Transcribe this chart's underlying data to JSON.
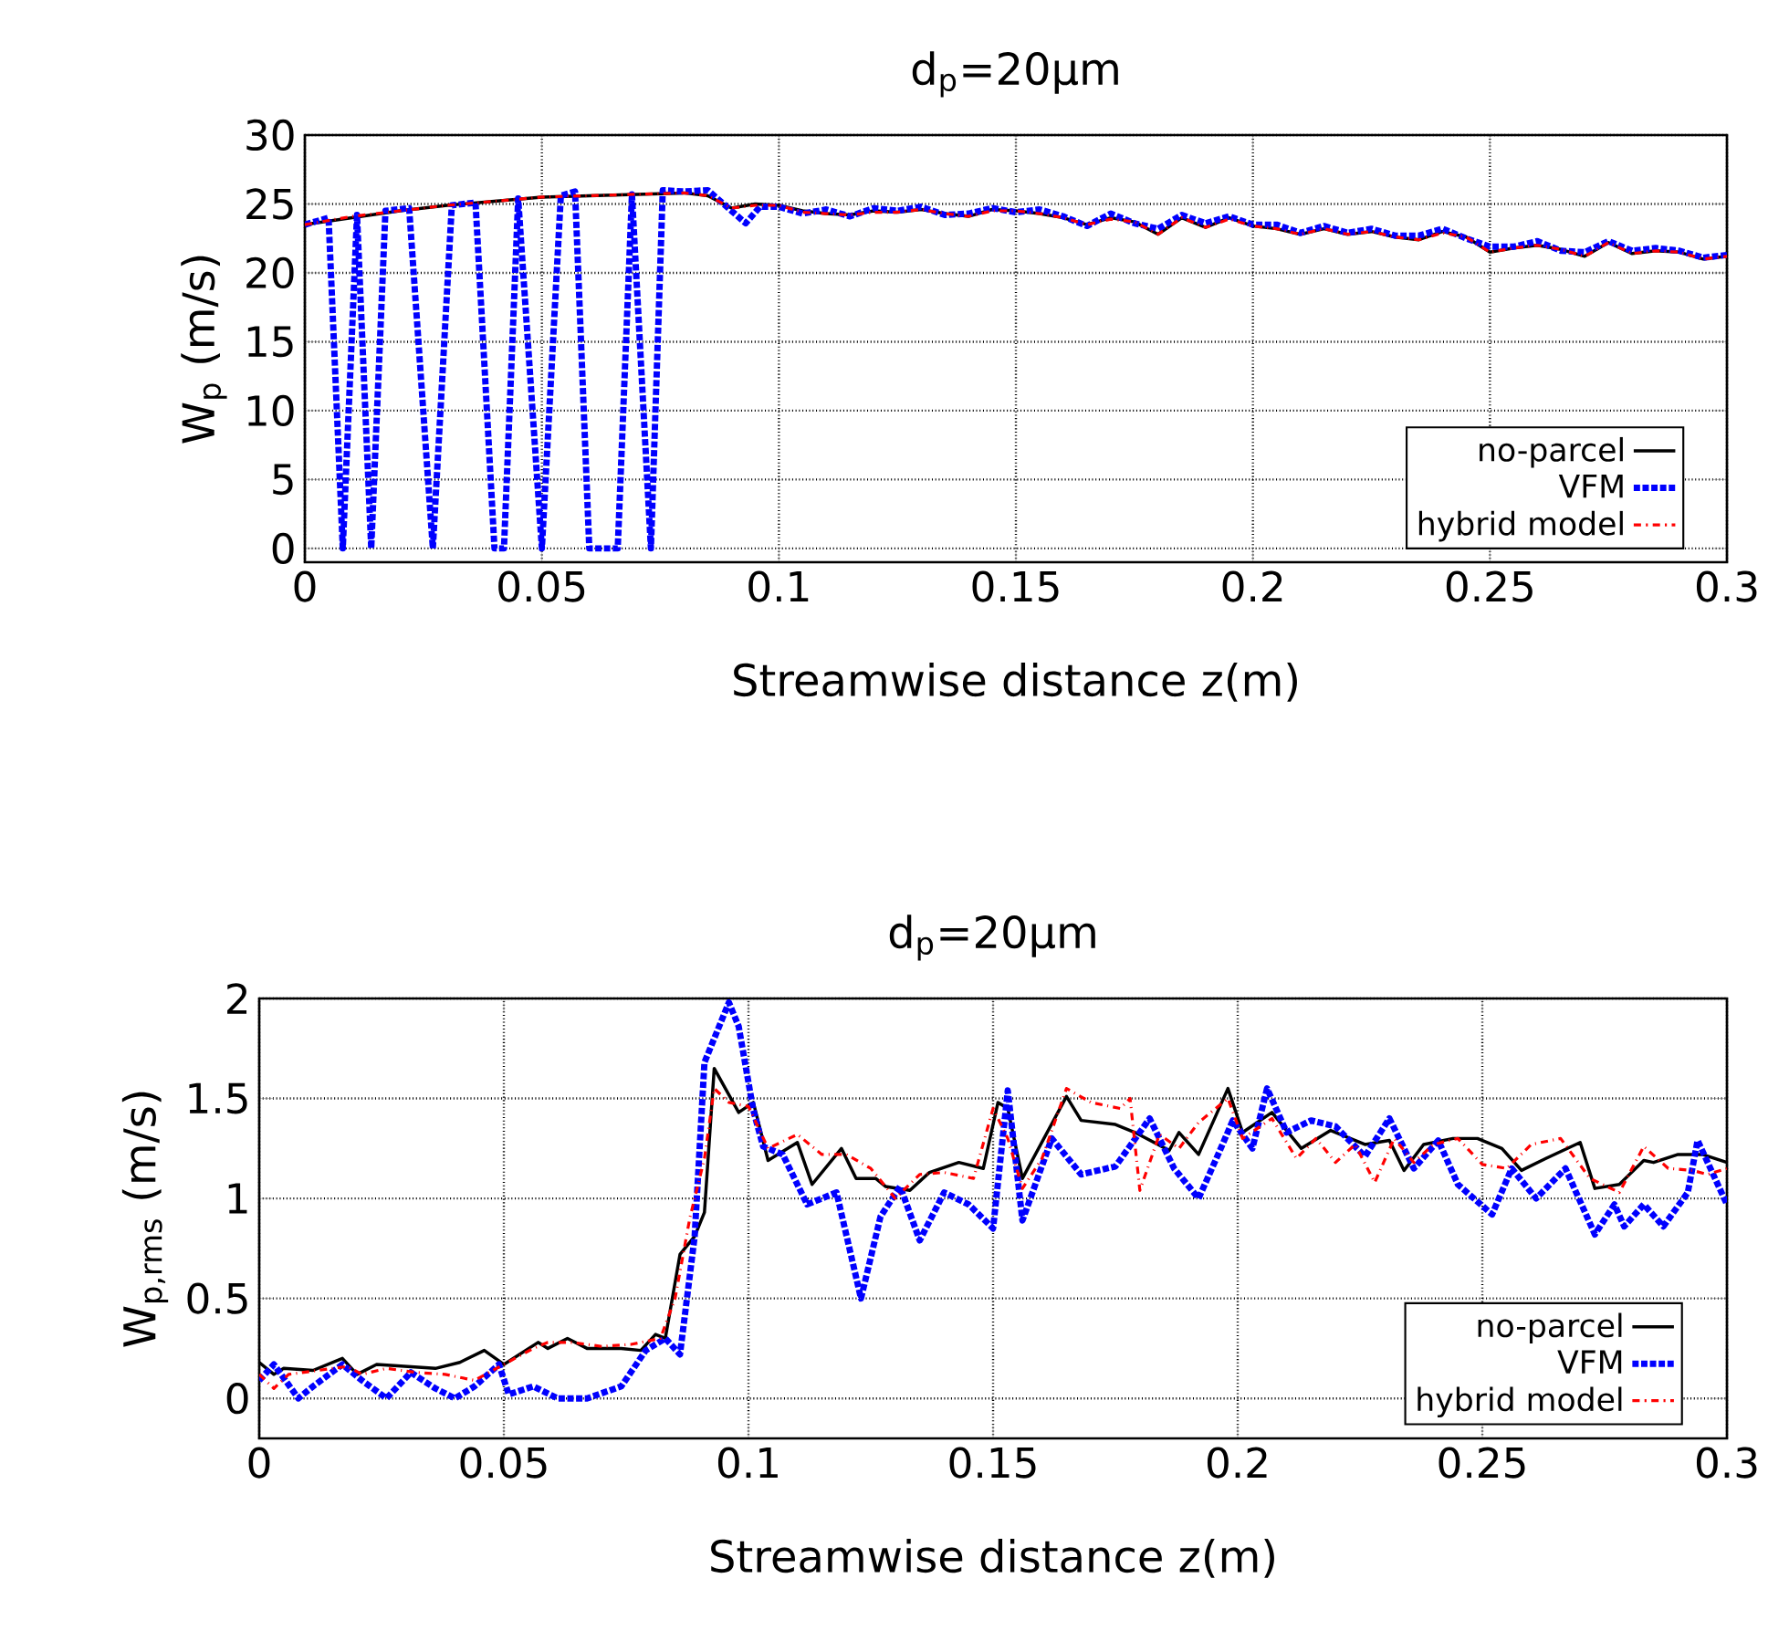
{
  "chart_data": [
    {
      "type": "line",
      "title": "d$_{p}$=20µm",
      "xlabel": "Streamwise distance z(m)",
      "ylabel": "W$_{p}$ (m/s)",
      "xlim": [
        0,
        0.3
      ],
      "ylim": [
        -1,
        30
      ],
      "xticks": [
        0,
        0.05,
        0.1,
        0.15,
        0.2,
        0.25,
        0.3
      ],
      "yticks": [
        0,
        5,
        10,
        15,
        20,
        25,
        30
      ],
      "grid": true,
      "legend": "bottom right",
      "series": [
        {
          "name": "no-parcel",
          "color": "#000000",
          "line_style": "solid",
          "x": [
            0,
            0.01,
            0.02,
            0.03,
            0.04,
            0.05,
            0.06,
            0.07,
            0.08,
            0.085,
            0.09,
            0.095,
            0.1,
            0.105,
            0.11,
            0.115,
            0.12,
            0.125,
            0.13,
            0.135,
            0.14,
            0.145,
            0.15,
            0.155,
            0.16,
            0.165,
            0.17,
            0.175,
            0.18,
            0.185,
            0.19,
            0.195,
            0.2,
            0.205,
            0.21,
            0.215,
            0.22,
            0.225,
            0.23,
            0.235,
            0.24,
            0.245,
            0.25,
            0.255,
            0.26,
            0.265,
            0.27,
            0.275,
            0.28,
            0.285,
            0.29,
            0.295,
            0.3
          ],
          "values": [
            23.5,
            24,
            24.5,
            24.9,
            25.2,
            25.5,
            25.6,
            25.7,
            25.8,
            25.6,
            24.7,
            25,
            24.9,
            24.5,
            24.3,
            24.2,
            24.5,
            24.4,
            24.6,
            24.3,
            24.1,
            24.6,
            24.5,
            24.3,
            24,
            23.5,
            24,
            23.7,
            22.8,
            24,
            23.3,
            24,
            23.4,
            23.2,
            22.8,
            23.2,
            22.8,
            23,
            22.6,
            22.4,
            23,
            22.6,
            21.5,
            21.8,
            22,
            21.7,
            21.2,
            22.2,
            21.4,
            21.6,
            21.5,
            21,
            21.2
          ]
        },
        {
          "name": "VFM",
          "color": "#0000ff",
          "line_style": "dotted",
          "x": [
            0,
            0.005,
            0.008,
            0.011,
            0.014,
            0.017,
            0.022,
            0.027,
            0.031,
            0.036,
            0.04,
            0.042,
            0.045,
            0.05,
            0.054,
            0.057,
            0.06,
            0.066,
            0.069,
            0.073,
            0.0755,
            0.08,
            0.085,
            0.09,
            0.093,
            0.096,
            0.1,
            0.105,
            0.11,
            0.115,
            0.12,
            0.125,
            0.13,
            0.135,
            0.14,
            0.145,
            0.15,
            0.155,
            0.16,
            0.165,
            0.17,
            0.175,
            0.18,
            0.185,
            0.19,
            0.195,
            0.2,
            0.205,
            0.21,
            0.215,
            0.22,
            0.225,
            0.23,
            0.235,
            0.24,
            0.245,
            0.25,
            0.255,
            0.26,
            0.265,
            0.27,
            0.275,
            0.28,
            0.285,
            0.29,
            0.295,
            0.3
          ],
          "values": [
            23.5,
            24,
            0,
            24.2,
            0,
            24.5,
            24.7,
            0,
            24.9,
            25.1,
            0,
            0,
            25.4,
            0,
            25.6,
            25.9,
            0,
            0,
            25.7,
            0,
            26,
            25.9,
            26,
            24.5,
            23.6,
            24.8,
            24.8,
            24.3,
            24.6,
            24.1,
            24.7,
            24.5,
            24.8,
            24.2,
            24.3,
            24.7,
            24.4,
            24.6,
            24.1,
            23.4,
            24.3,
            23.6,
            23.2,
            24.2,
            23.6,
            24.1,
            23.5,
            23.5,
            22.9,
            23.4,
            22.9,
            23.2,
            22.7,
            22.7,
            23.2,
            22.5,
            21.9,
            21.9,
            22.3,
            21.6,
            21.5,
            22.3,
            21.6,
            21.8,
            21.6,
            21.1,
            21.3
          ]
        },
        {
          "name": "hybrid model",
          "color": "#ff0000",
          "line_style": "dashdot",
          "x": [
            0,
            0.01,
            0.02,
            0.03,
            0.04,
            0.05,
            0.06,
            0.07,
            0.08,
            0.085,
            0.09,
            0.095,
            0.1,
            0.105,
            0.11,
            0.115,
            0.12,
            0.125,
            0.13,
            0.135,
            0.14,
            0.145,
            0.15,
            0.155,
            0.16,
            0.165,
            0.17,
            0.175,
            0.18,
            0.185,
            0.19,
            0.195,
            0.2,
            0.205,
            0.21,
            0.215,
            0.22,
            0.225,
            0.23,
            0.235,
            0.24,
            0.245,
            0.25,
            0.255,
            0.26,
            0.265,
            0.27,
            0.275,
            0.28,
            0.285,
            0.29,
            0.295,
            0.3
          ],
          "values": [
            23.5,
            24.1,
            24.5,
            24.9,
            25.2,
            25.5,
            25.6,
            25.7,
            25.8,
            25.6,
            24.7,
            24.9,
            24.9,
            24.4,
            24.3,
            24.2,
            24.4,
            24.4,
            24.6,
            24.3,
            24.1,
            24.5,
            24.5,
            24.3,
            24,
            23.5,
            23.9,
            23.7,
            22.8,
            24,
            23.3,
            23.9,
            23.4,
            23.2,
            22.8,
            23.2,
            22.8,
            23,
            22.6,
            22.4,
            22.9,
            22.6,
            21.5,
            21.8,
            22,
            21.7,
            21.2,
            22.2,
            21.4,
            21.6,
            21.5,
            21,
            21.2
          ]
        }
      ]
    },
    {
      "type": "line",
      "title": "d$_{p}$=20µm",
      "xlabel": "Streamwise distance z(m)",
      "ylabel": "W$_{p,rms}$ (m/s)",
      "xlim": [
        0,
        0.3
      ],
      "ylim": [
        -0.2,
        2
      ],
      "xticks": [
        0,
        0.05,
        0.1,
        0.15,
        0.2,
        0.25,
        0.3
      ],
      "yticks": [
        0,
        0.5,
        1,
        1.5,
        2
      ],
      "grid": true,
      "legend": "bottom right",
      "series": [
        {
          "name": "no-parcel",
          "color": "#000000",
          "line_style": "solid",
          "x": [
            0,
            0.003,
            0.005,
            0.011,
            0.017,
            0.02,
            0.024,
            0.03,
            0.036,
            0.041,
            0.046,
            0.05,
            0.057,
            0.059,
            0.063,
            0.067,
            0.074,
            0.078,
            0.081,
            0.083,
            0.086,
            0.089,
            0.091,
            0.093,
            0.098,
            0.101,
            0.104,
            0.11,
            0.113,
            0.119,
            0.122,
            0.126,
            0.128,
            0.133,
            0.137,
            0.143,
            0.148,
            0.151,
            0.153,
            0.156,
            0.165,
            0.168,
            0.175,
            0.179,
            0.186,
            0.188,
            0.192,
            0.198,
            0.201,
            0.207,
            0.213,
            0.219,
            0.226,
            0.231,
            0.234,
            0.238,
            0.244,
            0.249,
            0.254,
            0.258,
            0.263,
            0.27,
            0.273,
            0.278,
            0.283,
            0.285,
            0.29,
            0.295,
            0.3
          ],
          "values": [
            0.18,
            0.12,
            0.15,
            0.14,
            0.2,
            0.12,
            0.17,
            0.16,
            0.15,
            0.18,
            0.24,
            0.17,
            0.28,
            0.25,
            0.3,
            0.25,
            0.25,
            0.24,
            0.32,
            0.3,
            0.72,
            0.81,
            0.93,
            1.65,
            1.43,
            1.48,
            1.19,
            1.28,
            1.07,
            1.25,
            1.1,
            1.1,
            1.06,
            1.04,
            1.13,
            1.18,
            1.15,
            1.48,
            1.45,
            1.1,
            1.51,
            1.39,
            1.37,
            1.33,
            1.24,
            1.33,
            1.22,
            1.55,
            1.33,
            1.43,
            1.25,
            1.34,
            1.27,
            1.29,
            1.14,
            1.27,
            1.3,
            1.3,
            1.25,
            1.14,
            1.2,
            1.28,
            1.05,
            1.07,
            1.19,
            1.18,
            1.22,
            1.22,
            1.18
          ]
        },
        {
          "name": "VFM",
          "color": "#0000ff",
          "line_style": "dotted",
          "x": [
            0,
            0.003,
            0.008,
            0.011,
            0.017,
            0.021,
            0.026,
            0.031,
            0.036,
            0.04,
            0.044,
            0.049,
            0.051,
            0.056,
            0.061,
            0.067,
            0.074,
            0.079,
            0.083,
            0.086,
            0.089,
            0.091,
            0.096,
            0.098,
            0.101,
            0.103,
            0.107,
            0.112,
            0.118,
            0.123,
            0.127,
            0.131,
            0.135,
            0.14,
            0.145,
            0.15,
            0.153,
            0.156,
            0.162,
            0.168,
            0.175,
            0.182,
            0.187,
            0.192,
            0.196,
            0.199,
            0.203,
            0.206,
            0.21,
            0.215,
            0.22,
            0.226,
            0.231,
            0.236,
            0.241,
            0.245,
            0.252,
            0.256,
            0.261,
            0.267,
            0.273,
            0.277,
            0.279,
            0.283,
            0.287,
            0.292,
            0.294,
            0.3
          ],
          "values": [
            0.09,
            0.17,
            0,
            0.06,
            0.17,
            0.09,
            0,
            0.13,
            0.05,
            0,
            0.06,
            0.17,
            0.02,
            0.06,
            0,
            0,
            0.06,
            0.24,
            0.3,
            0.22,
            0.81,
            1.68,
            1.98,
            1.86,
            1.44,
            1.26,
            1.22,
            0.97,
            1.03,
            0.5,
            0.91,
            1.06,
            0.79,
            1.03,
            0.97,
            0.85,
            1.54,
            0.89,
            1.3,
            1.12,
            1.16,
            1.4,
            1.15,
            1,
            1.22,
            1.39,
            1.25,
            1.55,
            1.33,
            1.39,
            1.36,
            1.21,
            1.4,
            1.15,
            1.29,
            1.07,
            0.92,
            1.15,
            1,
            1.15,
            0.82,
            0.97,
            0.86,
            0.97,
            0.86,
            1.03,
            1.29,
            0.97
          ]
        },
        {
          "name": "hybrid model",
          "color": "#ff0000",
          "line_style": "dashdot",
          "x": [
            0,
            0.003,
            0.006,
            0.012,
            0.018,
            0.021,
            0.026,
            0.032,
            0.038,
            0.044,
            0.05,
            0.056,
            0.059,
            0.064,
            0.07,
            0.076,
            0.082,
            0.085,
            0.088,
            0.091,
            0.093,
            0.096,
            0.1,
            0.104,
            0.11,
            0.115,
            0.12,
            0.125,
            0.13,
            0.135,
            0.14,
            0.146,
            0.15,
            0.153,
            0.156,
            0.16,
            0.165,
            0.17,
            0.176,
            0.178,
            0.18,
            0.184,
            0.188,
            0.192,
            0.198,
            0.201,
            0.207,
            0.212,
            0.216,
            0.22,
            0.224,
            0.228,
            0.232,
            0.236,
            0.24,
            0.245,
            0.25,
            0.255,
            0.26,
            0.266,
            0.272,
            0.278,
            0.283,
            0.288,
            0.293,
            0.296,
            0.3
          ],
          "values": [
            0.12,
            0.05,
            0.12,
            0.14,
            0.16,
            0.12,
            0.15,
            0.13,
            0.12,
            0.09,
            0.17,
            0.25,
            0.28,
            0.28,
            0.26,
            0.27,
            0.3,
            0.5,
            0.9,
            1.2,
            1.55,
            1.48,
            1.46,
            1.25,
            1.32,
            1.22,
            1.22,
            1.15,
            1,
            1.12,
            1.13,
            1.1,
            1.45,
            1.3,
            1.05,
            1.2,
            1.55,
            1.48,
            1.45,
            1.5,
            1.04,
            1.32,
            1.25,
            1.38,
            1.5,
            1.3,
            1.4,
            1.2,
            1.3,
            1.18,
            1.27,
            1.08,
            1.3,
            1.18,
            1.27,
            1.3,
            1.17,
            1.15,
            1.27,
            1.3,
            1.1,
            1.03,
            1.26,
            1.15,
            1.14,
            1.12,
            1.15
          ]
        }
      ]
    }
  ]
}
